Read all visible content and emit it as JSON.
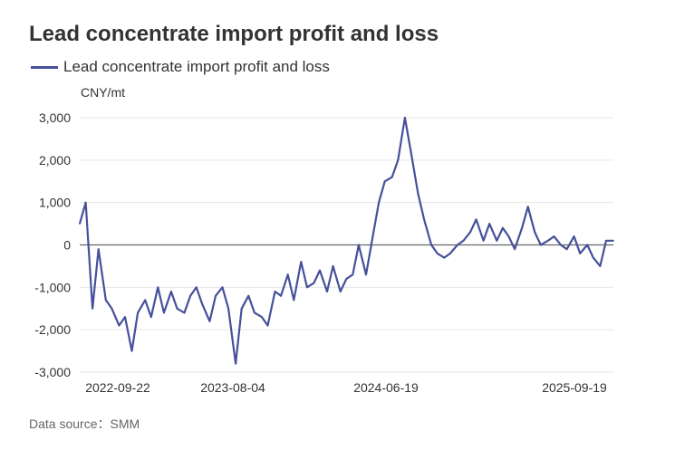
{
  "title": "Lead concentrate import profit and loss",
  "legend_label": "Lead concentrate import profit and loss",
  "unit_label": "CNY/mt",
  "source_label": "Data source：SMM",
  "colors": {
    "series": "#46509a",
    "grid": "#e6e6e6",
    "zero_line": "#666666",
    "tick_text": "#333333"
  },
  "chart_data": {
    "type": "line",
    "title": "Lead concentrate import profit and loss",
    "ylabel": "CNY/mt",
    "ylim": [
      -3000,
      3000
    ],
    "y_ticks": [
      -3000,
      -2000,
      -1000,
      0,
      1000,
      2000,
      3000
    ],
    "y_tick_labels": [
      "-3,000",
      "-2,000",
      "-1,000",
      "0",
      "1,000",
      "2,000",
      "3,000"
    ],
    "x_tick_labels": [
      "2022-09-22",
      "2023-08-04",
      "2024-06-19",
      "2025-09-19"
    ],
    "grid": true,
    "legend_position": "top-left",
    "series": [
      {
        "name": "Lead concentrate import profit and loss",
        "x": [
          "2022-06-01",
          "2022-06-15",
          "2022-07-01",
          "2022-07-15",
          "2022-08-01",
          "2022-08-15",
          "2022-09-01",
          "2022-09-15",
          "2022-10-01",
          "2022-10-15",
          "2022-11-01",
          "2022-11-15",
          "2022-12-01",
          "2022-12-15",
          "2023-01-01",
          "2023-01-15",
          "2023-02-01",
          "2023-02-15",
          "2023-03-01",
          "2023-03-15",
          "2023-04-01",
          "2023-04-15",
          "2023-05-01",
          "2023-05-15",
          "2023-06-01",
          "2023-06-15",
          "2023-07-01",
          "2023-07-15",
          "2023-08-01",
          "2023-08-15",
          "2023-09-01",
          "2023-09-15",
          "2023-10-01",
          "2023-10-15",
          "2023-11-01",
          "2023-11-15",
          "2023-12-01",
          "2023-12-15",
          "2024-01-01",
          "2024-01-15",
          "2024-02-01",
          "2024-02-15",
          "2024-03-01",
          "2024-03-15",
          "2024-04-01",
          "2024-04-15",
          "2024-05-01",
          "2024-05-15",
          "2024-06-01",
          "2024-06-15",
          "2024-07-01",
          "2024-07-15",
          "2024-08-01",
          "2024-08-15",
          "2024-09-01",
          "2024-09-15",
          "2024-10-01",
          "2024-10-15",
          "2024-11-01",
          "2024-11-15",
          "2024-12-01",
          "2024-12-15",
          "2025-01-01",
          "2025-01-15",
          "2025-02-01",
          "2025-02-15",
          "2025-03-01",
          "2025-03-15",
          "2025-04-01",
          "2025-04-15",
          "2025-05-01",
          "2025-05-15",
          "2025-06-01",
          "2025-06-15",
          "2025-07-01",
          "2025-07-15",
          "2025-08-01",
          "2025-08-15",
          "2025-09-01",
          "2025-09-15",
          "2025-10-01",
          "2025-10-15",
          "2025-11-01"
        ],
        "values": [
          500,
          1000,
          -1500,
          -100,
          -1300,
          -1500,
          -1900,
          -1700,
          -2500,
          -1600,
          -1300,
          -1700,
          -1000,
          -1600,
          -1100,
          -1500,
          -1600,
          -1200,
          -1000,
          -1400,
          -1800,
          -1200,
          -1000,
          -1500,
          -2800,
          -1500,
          -1200,
          -1600,
          -1700,
          -1900,
          -1100,
          -1200,
          -700,
          -1300,
          -400,
          -1000,
          -900,
          -600,
          -1100,
          -500,
          -1100,
          -800,
          -700,
          0,
          -700,
          100,
          1000,
          1500,
          1600,
          2000,
          3000,
          2200,
          1200,
          600,
          0,
          -200,
          -300,
          -200,
          0,
          100,
          300,
          600,
          100,
          500,
          100,
          400,
          200,
          -100,
          400,
          900,
          300,
          0,
          100,
          200,
          0,
          -100,
          200,
          -200,
          0,
          -300,
          -500,
          100,
          100
        ]
      }
    ]
  }
}
